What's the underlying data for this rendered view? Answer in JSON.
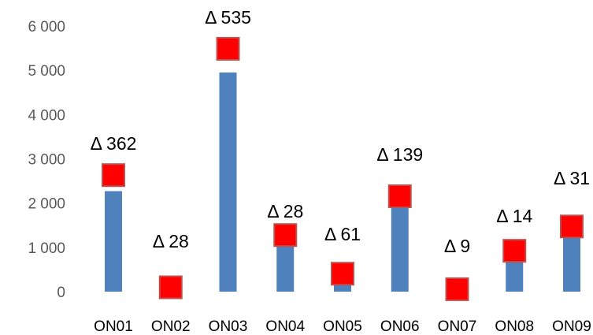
{
  "chart_data": {
    "type": "bar",
    "categories": [
      "ON01",
      "ON02",
      "ON03",
      "ON04",
      "ON05",
      "ON06",
      "ON07",
      "ON08",
      "ON09"
    ],
    "series": [
      {
        "type": "bar",
        "values": [
          2270,
          0,
          4950,
          1050,
          170,
          1950,
          0,
          700,
          1260
        ],
        "color": "#4f81bd"
      },
      {
        "type": "marker",
        "values": [
          2632,
          98,
          5485,
          1278,
          405,
          2155,
          55,
          923,
          1472
        ],
        "color": "#ff0000",
        "border": "#c0504d"
      }
    ],
    "data_labels": [
      "Δ 362",
      "Δ 28",
      "Δ 535",
      "Δ 28",
      "Δ 61",
      "Δ 139",
      "Δ 9",
      "Δ 14",
      "Δ 31"
    ],
    "yticks": [
      "0",
      "1 000",
      "2 000",
      "3 000",
      "4 000",
      "5 000",
      "6 000"
    ],
    "ylim": [
      0,
      6000
    ],
    "grid": false,
    "legend": "none"
  }
}
